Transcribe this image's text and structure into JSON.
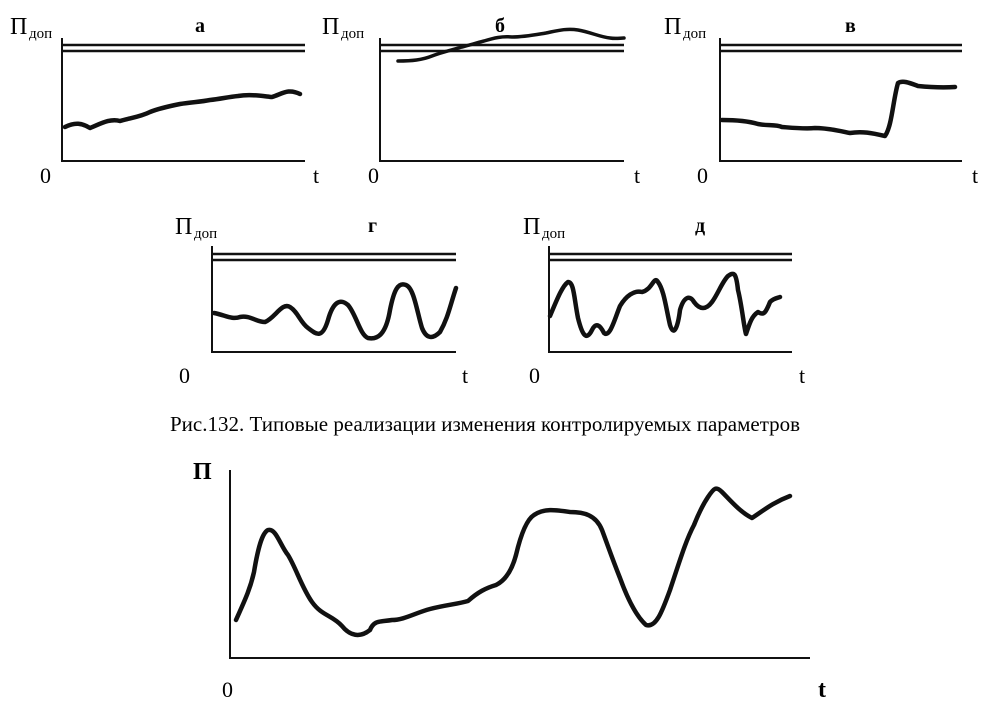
{
  "panels": [
    {
      "id": "a",
      "label": "а",
      "ylabel": "П",
      "ysub": "доп",
      "origin": "0",
      "xlabel": "t"
    },
    {
      "id": "b",
      "label": "б",
      "ylabel": "П",
      "ysub": "доп",
      "origin": "0",
      "xlabel": "t"
    },
    {
      "id": "v",
      "label": "в",
      "ylabel": "П",
      "ysub": "доп",
      "origin": "0",
      "xlabel": "t"
    },
    {
      "id": "g",
      "label": "г",
      "ylabel": "П",
      "ysub": "доп",
      "origin": "0",
      "xlabel": "t"
    },
    {
      "id": "d",
      "label": "д",
      "ylabel": "П",
      "ysub": "доп",
      "origin": "0",
      "xlabel": "t"
    }
  ],
  "caption": "Рис.132. Типовые реализации изменения контролируемых параметров",
  "bottom_chart": {
    "ylabel": "П",
    "origin": "0",
    "xlabel": "t"
  }
}
